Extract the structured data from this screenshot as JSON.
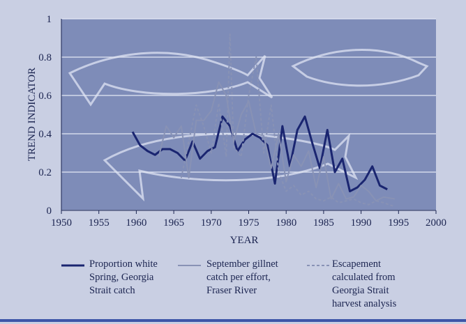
{
  "chart_data": {
    "type": "line",
    "xlabel": "YEAR",
    "ylabel": "TREND INDICATOR",
    "xlim": [
      1950,
      2000
    ],
    "xticks": [
      1950,
      1955,
      1960,
      1965,
      1970,
      1975,
      1980,
      1985,
      1990,
      1995,
      2000
    ],
    "ylim": [
      0,
      1
    ],
    "yticks": [
      0,
      0.2,
      0.4,
      0.6,
      0.8,
      1
    ],
    "grid": true,
    "series": [
      {
        "name": "Proportion white Spring, Georgia Strait catch",
        "color": "#1a2570",
        "style": "solid",
        "x": [
          1959.5,
          1960.5,
          1961.5,
          1962.5,
          1963.5,
          1964.5,
          1965.5,
          1966.5,
          1967.5,
          1968.5,
          1969.5,
          1970.5,
          1971.5,
          1972.5,
          1973.5,
          1974.5,
          1975.5,
          1976.5,
          1977.5,
          1978.5,
          1979.5,
          1980.5,
          1981.5,
          1982.5,
          1983.5,
          1984.5,
          1985.5,
          1986.5,
          1987.5,
          1988.5,
          1989.5,
          1990.5,
          1991.5,
          1992.5,
          1993.5
        ],
        "values": [
          0.41,
          0.34,
          0.31,
          0.29,
          0.32,
          0.32,
          0.3,
          0.26,
          0.36,
          0.27,
          0.31,
          0.33,
          0.49,
          0.44,
          0.31,
          0.37,
          0.4,
          0.38,
          0.34,
          0.14,
          0.44,
          0.23,
          0.42,
          0.49,
          0.35,
          0.22,
          0.42,
          0.2,
          0.27,
          0.1,
          0.12,
          0.16,
          0.23,
          0.13,
          0.11
        ]
      },
      {
        "name": "September gillnet catch per effort, Fraser River",
        "color": "#8892b5",
        "style": "solid",
        "x": [
          1963,
          1964,
          1965,
          1966,
          1967,
          1968,
          1969,
          1970,
          1971,
          1972,
          1973,
          1974,
          1975,
          1976,
          1977,
          1978,
          1979,
          1980,
          1981,
          1982,
          1983,
          1984,
          1985,
          1986,
          1987,
          1988,
          1989,
          1990,
          1991,
          1992,
          1993,
          1994.5
        ],
        "values": [
          0.28,
          0.44,
          0.38,
          0.44,
          0.17,
          0.47,
          0.47,
          0.52,
          0.67,
          0.6,
          0.36,
          0.5,
          0.57,
          0.4,
          0.39,
          0.22,
          0.4,
          0.15,
          0.29,
          0.23,
          0.31,
          0.12,
          0.28,
          0.06,
          0.14,
          0.06,
          0.07,
          0.13,
          0.1,
          0.05,
          0.07,
          0.06
        ]
      },
      {
        "name": "Escapement calculated from Georgia Strait harvest analysis",
        "color": "#8892b5",
        "style": "dashed",
        "x": [
          1966,
          1967,
          1968,
          1969,
          1970,
          1971,
          1972,
          1972.5,
          1973,
          1974,
          1975,
          1976,
          1977,
          1978,
          1979,
          1980,
          1981,
          1982,
          1983,
          1984,
          1985,
          1986,
          1987,
          1988,
          1989,
          1990,
          1991,
          1992,
          1993,
          1994.5
        ],
        "values": [
          0.17,
          0.36,
          0.55,
          0.44,
          0.3,
          0.56,
          0.28,
          0.92,
          0.33,
          0.28,
          0.6,
          0.8,
          0.3,
          0.55,
          0.2,
          0.1,
          0.13,
          0.08,
          0.1,
          0.06,
          0.05,
          0.07,
          0.04,
          0.05,
          0.06,
          0.04,
          0.03,
          0.05,
          0.04,
          0.02
        ]
      }
    ]
  }
}
